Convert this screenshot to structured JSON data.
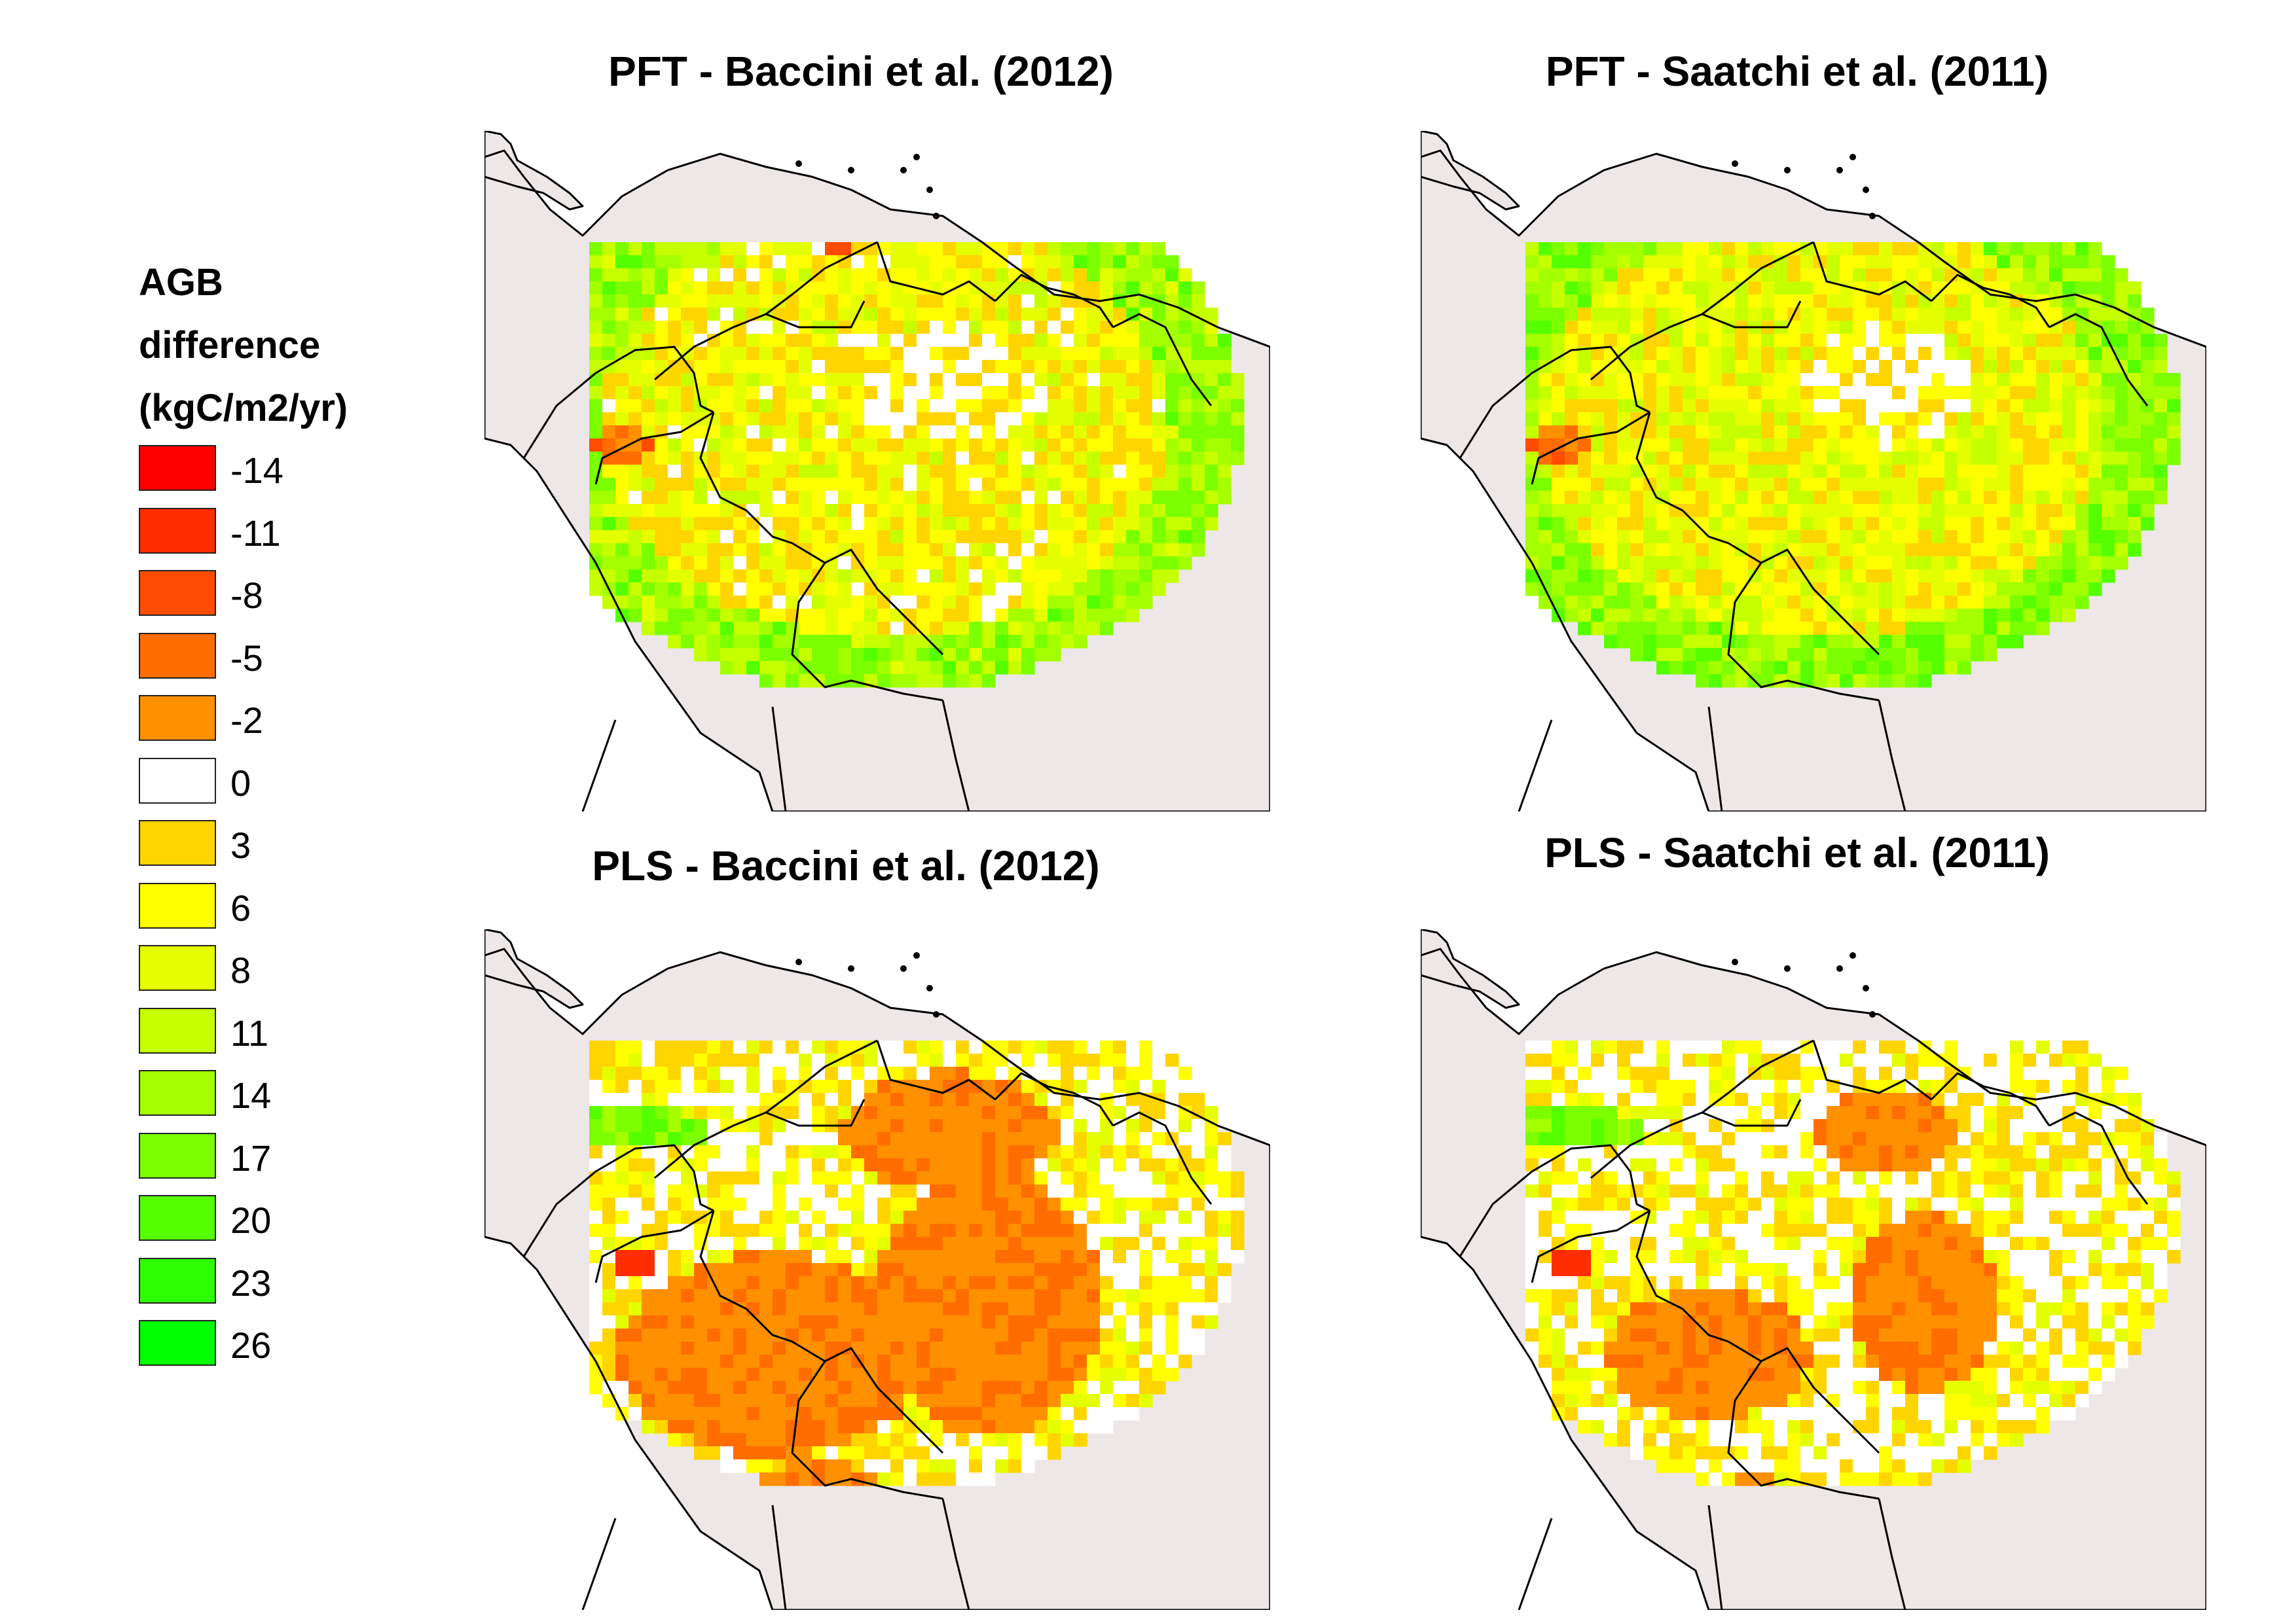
{
  "legend": {
    "title_lines": [
      "AGB",
      "difference",
      "(kgC/m2/yr)"
    ],
    "items": [
      {
        "label": "-14",
        "color": "#ff0000"
      },
      {
        "label": "-11",
        "color": "#ff2d00"
      },
      {
        "label": "-8",
        "color": "#ff4c00"
      },
      {
        "label": "-5",
        "color": "#ff6d00"
      },
      {
        "label": "-2",
        "color": "#ff9000"
      },
      {
        "label": "0",
        "color": "#ffffff"
      },
      {
        "label": "3",
        "color": "#ffd500"
      },
      {
        "label": "6",
        "color": "#ffff00"
      },
      {
        "label": "8",
        "color": "#e4ff00"
      },
      {
        "label": "11",
        "color": "#c6ff00"
      },
      {
        "label": "14",
        "color": "#a4ff00"
      },
      {
        "label": "17",
        "color": "#7cff00"
      },
      {
        "label": "20",
        "color": "#55ff00"
      },
      {
        "label": "23",
        "color": "#2dff00"
      },
      {
        "label": "26",
        "color": "#00ff00"
      }
    ]
  },
  "panels": [
    {
      "title": "PFT - Baccini et al. (2012)",
      "pattern": "pft_baccini"
    },
    {
      "title": "PFT - Saatchi et al. (2011)",
      "pattern": "pft_saatchi"
    },
    {
      "title": "PLS - Baccini et al. (2012)",
      "pattern": "pls_baccini"
    },
    {
      "title": "PLS - Saatchi et al. (2011)",
      "pattern": "pls_saatchi"
    }
  ],
  "colors": {
    "land": "#ede7e7",
    "ocean": "#ffffff",
    "border": "#000000"
  }
}
